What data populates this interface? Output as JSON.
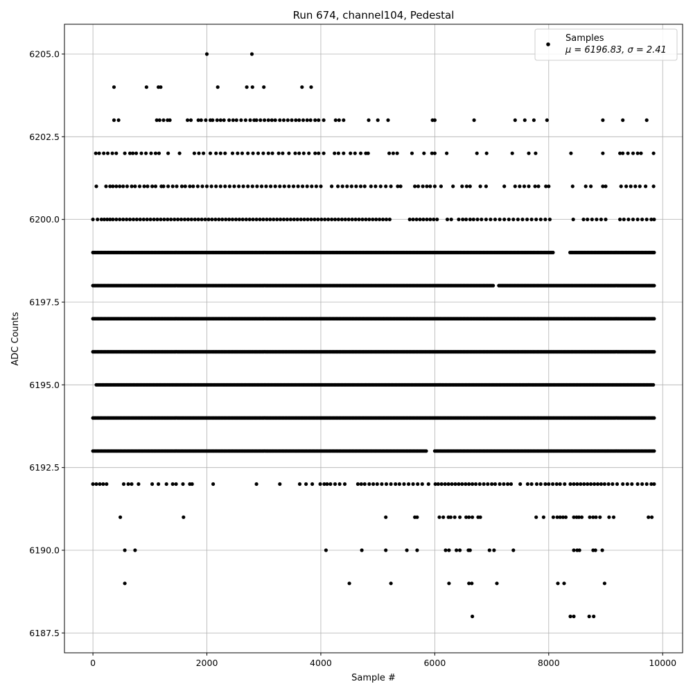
{
  "chart_data": {
    "type": "scatter",
    "title": "Run 674, channel104, Pedestal",
    "xlabel": "Sample #",
    "ylabel": "ADC Counts",
    "xlim": [
      -500,
      10350
    ],
    "ylim": [
      6186.9,
      6205.9
    ],
    "grid": true,
    "marker_color": "#000000",
    "x_ticks": [
      0,
      2000,
      4000,
      6000,
      8000,
      10000
    ],
    "x_tick_labels": [
      "0",
      "2000",
      "4000",
      "6000",
      "8000",
      "10000"
    ],
    "y_ticks": [
      6187.5,
      6190.0,
      6192.5,
      6195.0,
      6197.5,
      6200.0,
      6202.5,
      6205.0
    ],
    "y_tick_labels": [
      "6187.5",
      "6190.0",
      "6192.5",
      "6195.0",
      "6197.5",
      "6200.0",
      "6202.5",
      "6205.0"
    ],
    "legend": {
      "position": "top-right",
      "entries": [
        "Samples",
        "μ = 6196.83, σ = 2.41"
      ]
    },
    "series": [
      {
        "name": "Samples",
        "levels": [
          {
            "y": 6205,
            "x": [
              2000,
              2790
            ]
          },
          {
            "y": 6204,
            "x": [
              370,
              940,
              1150,
              1190,
              2190,
              2700,
              2800,
              3000,
              3670,
              3830
            ]
          },
          {
            "y": 6203,
            "x": [
              370,
              450,
              1120,
              1170,
              1240,
              1310,
              1350,
              1660,
              1720,
              1850,
              1900,
              1980,
              2060,
              2100,
              2180,
              2240,
              2300,
              2390,
              2460,
              2520,
              2600,
              2680,
              2760,
              2830,
              2870,
              2940,
              3010,
              3080,
              3140,
              3200,
              3280,
              3350,
              3420,
              3490,
              3560,
              3620,
              3690,
              3760,
              3820,
              3900,
              3960,
              4050,
              4260,
              4320,
              4400,
              4840,
              5000,
              5180,
              5960,
              6000,
              6690,
              7410,
              7580,
              7740,
              7970,
              8950,
              9300,
              9720
            ]
          },
          {
            "y": 6202,
            "x": [
              50,
              110,
              190,
              260,
              340,
              410,
              560,
              650,
              700,
              760,
              850,
              930,
              1020,
              1100,
              1160,
              1320,
              1520,
              1780,
              1860,
              1940,
              2060,
              2160,
              2240,
              2320,
              2450,
              2540,
              2620,
              2720,
              2810,
              2900,
              2990,
              3080,
              3150,
              3260,
              3330,
              3440,
              3550,
              3620,
              3700,
              3790,
              3900,
              3960,
              4050,
              4240,
              4310,
              4400,
              4520,
              4600,
              4700,
              4790,
              4830,
              5200,
              5270,
              5340,
              5600,
              5810,
              5950,
              6000,
              6210,
              6740,
              6910,
              7360,
              7650,
              7770,
              8390,
              8950,
              9250,
              9300,
              9390,
              9480,
              9560,
              9620,
              9840
            ]
          },
          {
            "y": 6201,
            "x": [
              60,
              230,
              300,
              350,
              410,
              470,
              530,
              600,
              680,
              740,
              820,
              900,
              960,
              1040,
              1100,
              1200,
              1240,
              1320,
              1400,
              1470,
              1560,
              1620,
              1700,
              1760,
              1840,
              1920,
              2000,
              2080,
              2160,
              2240,
              2320,
              2400,
              2480,
              2560,
              2640,
              2720,
              2800,
              2880,
              2960,
              3040,
              3120,
              3200,
              3280,
              3360,
              3440,
              3520,
              3600,
              3680,
              3760,
              3840,
              3920,
              4000,
              4190,
              4300,
              4380,
              4460,
              4540,
              4620,
              4700,
              4770,
              4880,
              4960,
              5050,
              5140,
              5230,
              5350,
              5400,
              5650,
              5710,
              5790,
              5860,
              5920,
              6000,
              6110,
              6320,
              6480,
              6560,
              6620,
              6800,
              6900,
              7220,
              7410,
              7490,
              7570,
              7650,
              7760,
              7820,
              7950,
              8000,
              8420,
              8650,
              8740,
              8950,
              9000,
              9270,
              9360,
              9440,
              9520,
              9600,
              9700,
              9840
            ]
          },
          {
            "y": 6200,
            "x": [
              0,
              80,
              150,
              200,
              250,
              300,
              350,
              410,
              470,
              530,
              590,
              650,
              710,
              770,
              830,
              890,
              950,
              1010,
              1070,
              1130,
              1190,
              1250,
              1310,
              1370,
              1430,
              1490,
              1550,
              1610,
              1670,
              1730,
              1790,
              1850,
              1910,
              1970,
              2030,
              2090,
              2150,
              2210,
              2270,
              2330,
              2390,
              2450,
              2510,
              2570,
              2630,
              2690,
              2750,
              2810,
              2870,
              2930,
              2990,
              3050,
              3110,
              3170,
              3230,
              3290,
              3350,
              3410,
              3470,
              3530,
              3590,
              3650,
              3710,
              3770,
              3830,
              3890,
              3950,
              4010,
              4070,
              4130,
              4190,
              4250,
              4310,
              4370,
              4430,
              4490,
              4550,
              4610,
              4670,
              4730,
              4790,
              4850,
              4910,
              4970,
              5030,
              5090,
              5150,
              5210,
              5560,
              5620,
              5680,
              5740,
              5800,
              5860,
              5920,
              5980,
              6040,
              6220,
              6290,
              6420,
              6490,
              6550,
              6620,
              6680,
              6750,
              6820,
              6900,
              6980,
              7060,
              7140,
              7220,
              7300,
              7380,
              7460,
              7540,
              7620,
              7700,
              7780,
              7860,
              7940,
              8020,
              8430,
              8610,
              8680,
              8760,
              8840,
              8920,
              9000,
              9250,
              9320,
              9400,
              9480,
              9560,
              9640,
              9720,
              9800,
              9850
            ]
          }
        ],
        "dense_levels": [
          {
            "y": 6199,
            "x_range": [
              0,
              9850
            ],
            "gaps": [
              [
                8100,
                8350
              ]
            ]
          },
          {
            "y": 6198,
            "x_range": [
              0,
              9850
            ],
            "gaps": [
              [
                7040,
                7120
              ]
            ]
          },
          {
            "y": 6197,
            "x_range": [
              0,
              9850
            ],
            "gaps": []
          },
          {
            "y": 6196,
            "x_range": [
              0,
              9850
            ],
            "gaps": []
          },
          {
            "y": 6195,
            "x_range": [
              60,
              9850
            ],
            "gaps": []
          },
          {
            "y": 6194,
            "x_range": [
              0,
              9850
            ],
            "gaps": []
          },
          {
            "y": 6193,
            "x_range": [
              0,
              9850
            ],
            "gaps": [
              [
                5870,
                5980
              ]
            ]
          }
        ],
        "sparse_levels": [
          {
            "y": 6192,
            "x": [
              0,
              60,
              120,
              180,
              240,
              540,
              620,
              680,
              800,
              1040,
              1150,
              1290,
              1400,
              1460,
              1580,
              1700,
              1740,
              2110,
              2870,
              3280,
              3630,
              3740,
              3850,
              3990,
              4060,
              4110,
              4170,
              4250,
              4330,
              4420,
              4650,
              4710,
              4770,
              4850,
              4920,
              4990,
              5070,
              5150,
              5230,
              5310,
              5380,
              5460,
              5540,
              5620,
              5700,
              5780,
              5890,
              6010,
              6060,
              6120,
              6180,
              6240,
              6300,
              6360,
              6420,
              6480,
              6540,
              6600,
              6660,
              6720,
              6790,
              6860,
              6930,
              7000,
              7060,
              7140,
              7210,
              7280,
              7340,
              7500,
              7630,
              7700,
              7790,
              7860,
              7940,
              8000,
              8070,
              8140,
              8200,
              8280,
              8380,
              8440,
              8500,
              8560,
              8620,
              8680,
              8740,
              8800,
              8860,
              8920,
              8980,
              9050,
              9120,
              9200,
              9300,
              9380,
              9460,
              9560,
              9640,
              9720,
              9800,
              9850
            ]
          },
          {
            "y": 6191,
            "x": [
              480,
              1590,
              5140,
              5650,
              5690,
              6080,
              6150,
              6240,
              6280,
              6350,
              6440,
              6550,
              6600,
              6660,
              6760,
              6800,
              7780,
              7910,
              8080,
              8150,
              8200,
              8250,
              8300,
              8440,
              8490,
              8530,
              8580,
              8720,
              8780,
              8830,
              8900,
              9060,
              9140,
              9750,
              9810
            ]
          },
          {
            "y": 6190,
            "x": [
              560,
              740,
              4090,
              4720,
              5140,
              5510,
              5690,
              6190,
              6250,
              6380,
              6440,
              6590,
              6620,
              6960,
              7040,
              7380,
              8440,
              8500,
              8540,
              8780,
              8820,
              8940
            ]
          },
          {
            "y": 6189,
            "x": [
              560,
              4500,
              5230,
              6250,
              6600,
              6650,
              7090,
              8160,
              8270,
              8980
            ]
          },
          {
            "y": 6188,
            "x": [
              6660,
              8380,
              8440,
              8710,
              8790
            ]
          }
        ]
      }
    ]
  }
}
